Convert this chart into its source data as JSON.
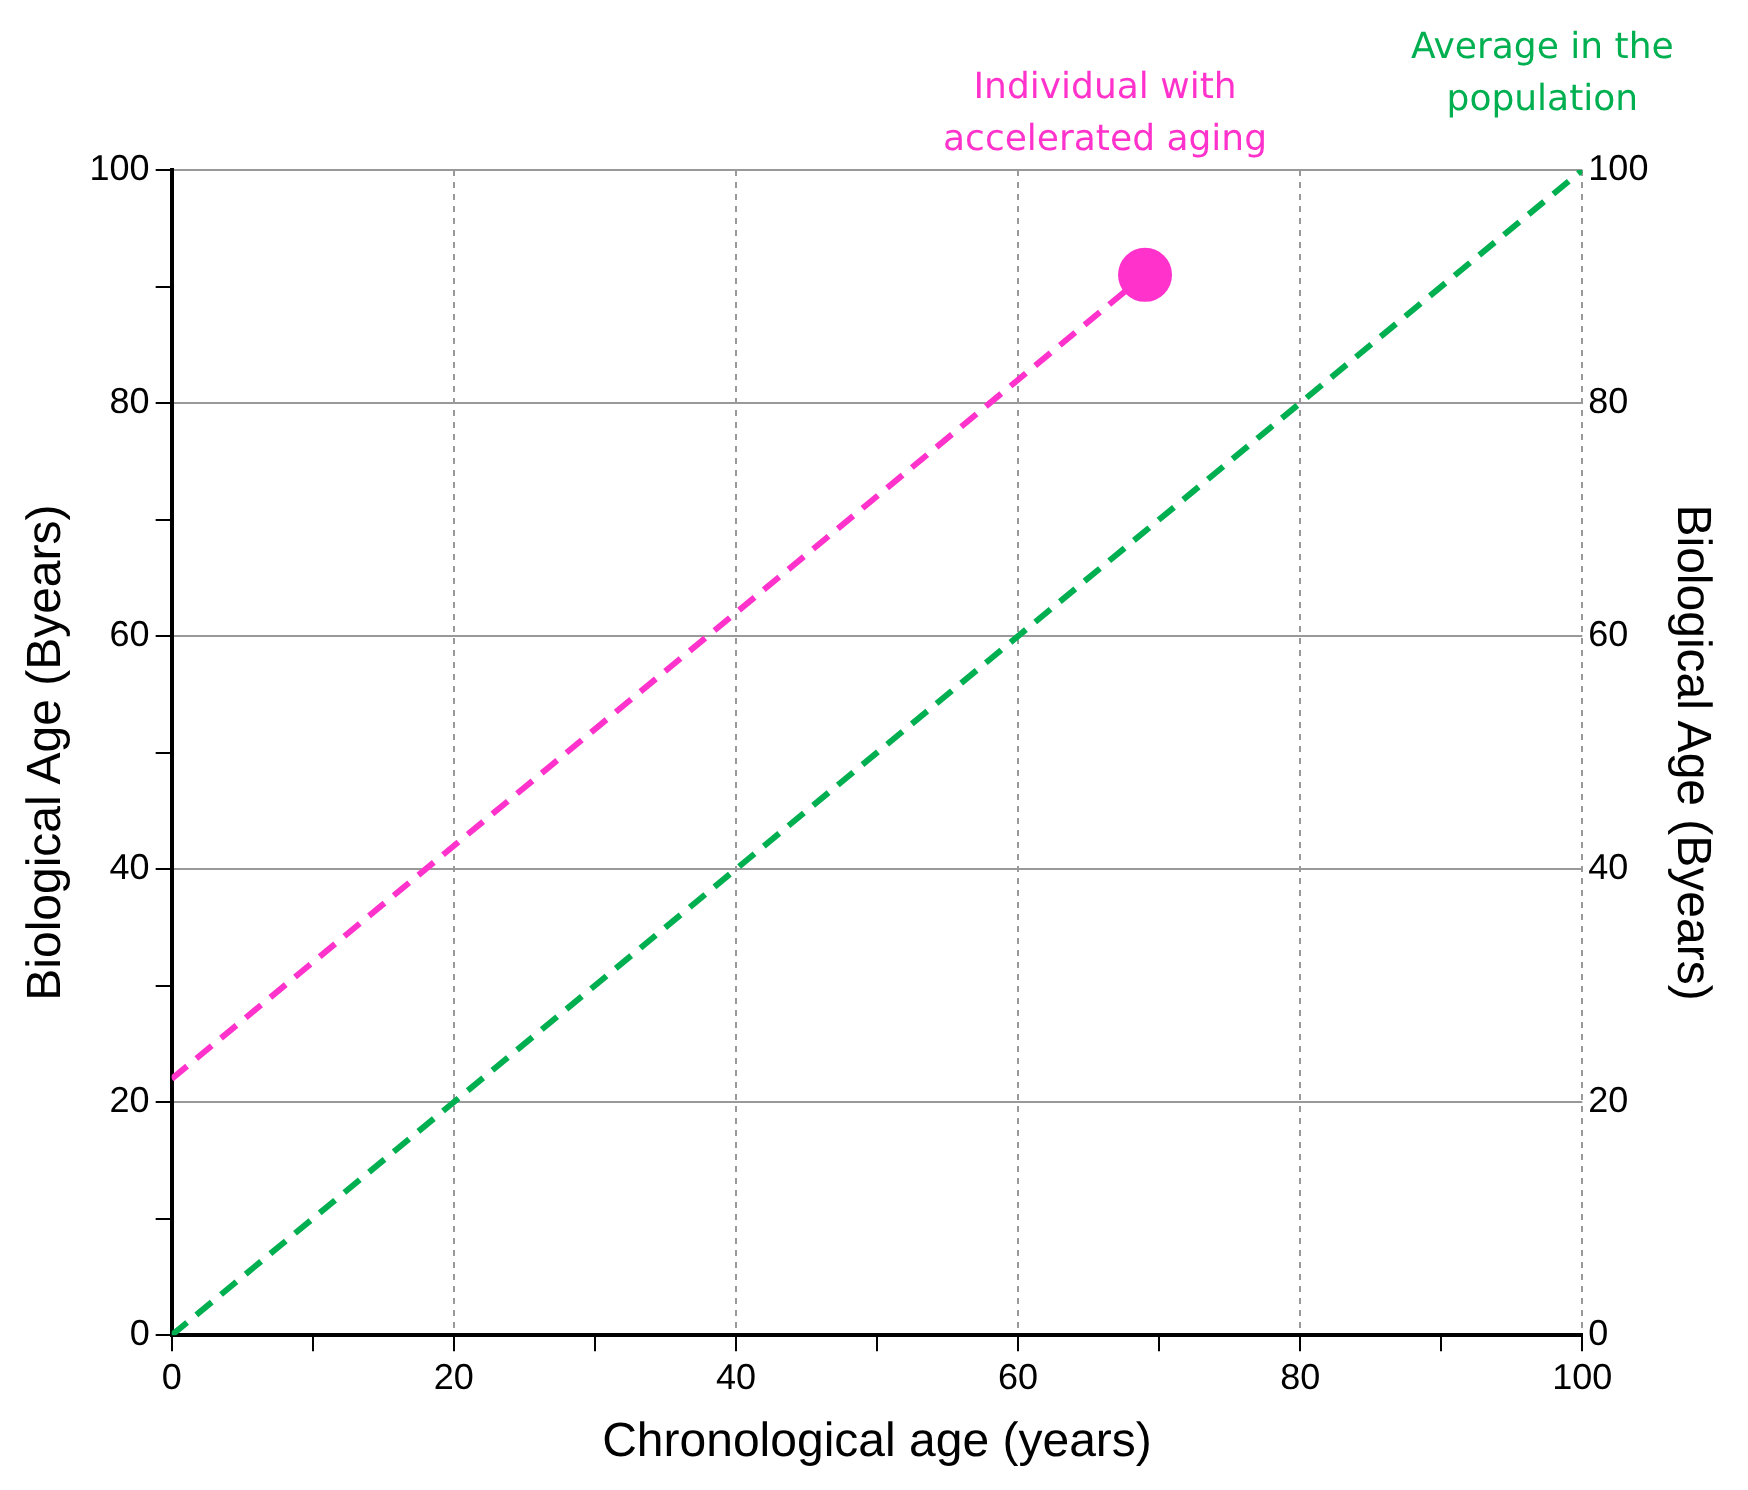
{
  "chart_data": {
    "type": "line",
    "xlabel": "Chronological age (years)",
    "ylabel": "Biological Age (Byears)",
    "y2label": "Biological Age (Byears)",
    "xlim": [
      0,
      100
    ],
    "ylim": [
      0,
      100
    ],
    "y2lim": [
      0,
      100
    ],
    "xticks": [
      0,
      {
        "value": 10,
        "label": null
      },
      20,
      {
        "value": 30,
        "label": null
      },
      40,
      {
        "value": 50,
        "label": null
      },
      60,
      {
        "value": 70,
        "label": null
      },
      80,
      {
        "value": 90,
        "label": null
      },
      100
    ],
    "yticks": [
      0,
      {
        "value": 10,
        "label": null
      },
      20,
      {
        "value": 30,
        "label": null
      },
      40,
      {
        "value": 50,
        "label": null
      },
      60,
      {
        "value": 70,
        "label": null
      },
      80,
      {
        "value": 90,
        "label": null
      },
      100
    ],
    "y2ticks": [
      0,
      20,
      40,
      60,
      80,
      100
    ],
    "grid": true,
    "line_style": "dashed",
    "marker": "none",
    "series": [
      {
        "name": "Individual with accelerated aging",
        "color": "#ff33cc",
        "x": [
          0,
          69
        ],
        "values": [
          22,
          91
        ]
      },
      {
        "type": "scatter",
        "color": "#ff33cc",
        "x": [
          69
        ],
        "values": [
          91
        ],
        "marker": "circle"
      },
      {
        "name": "Average in the population",
        "color": "#00b050",
        "x": [
          0,
          100
        ],
        "values": [
          0,
          100
        ]
      }
    ]
  }
}
